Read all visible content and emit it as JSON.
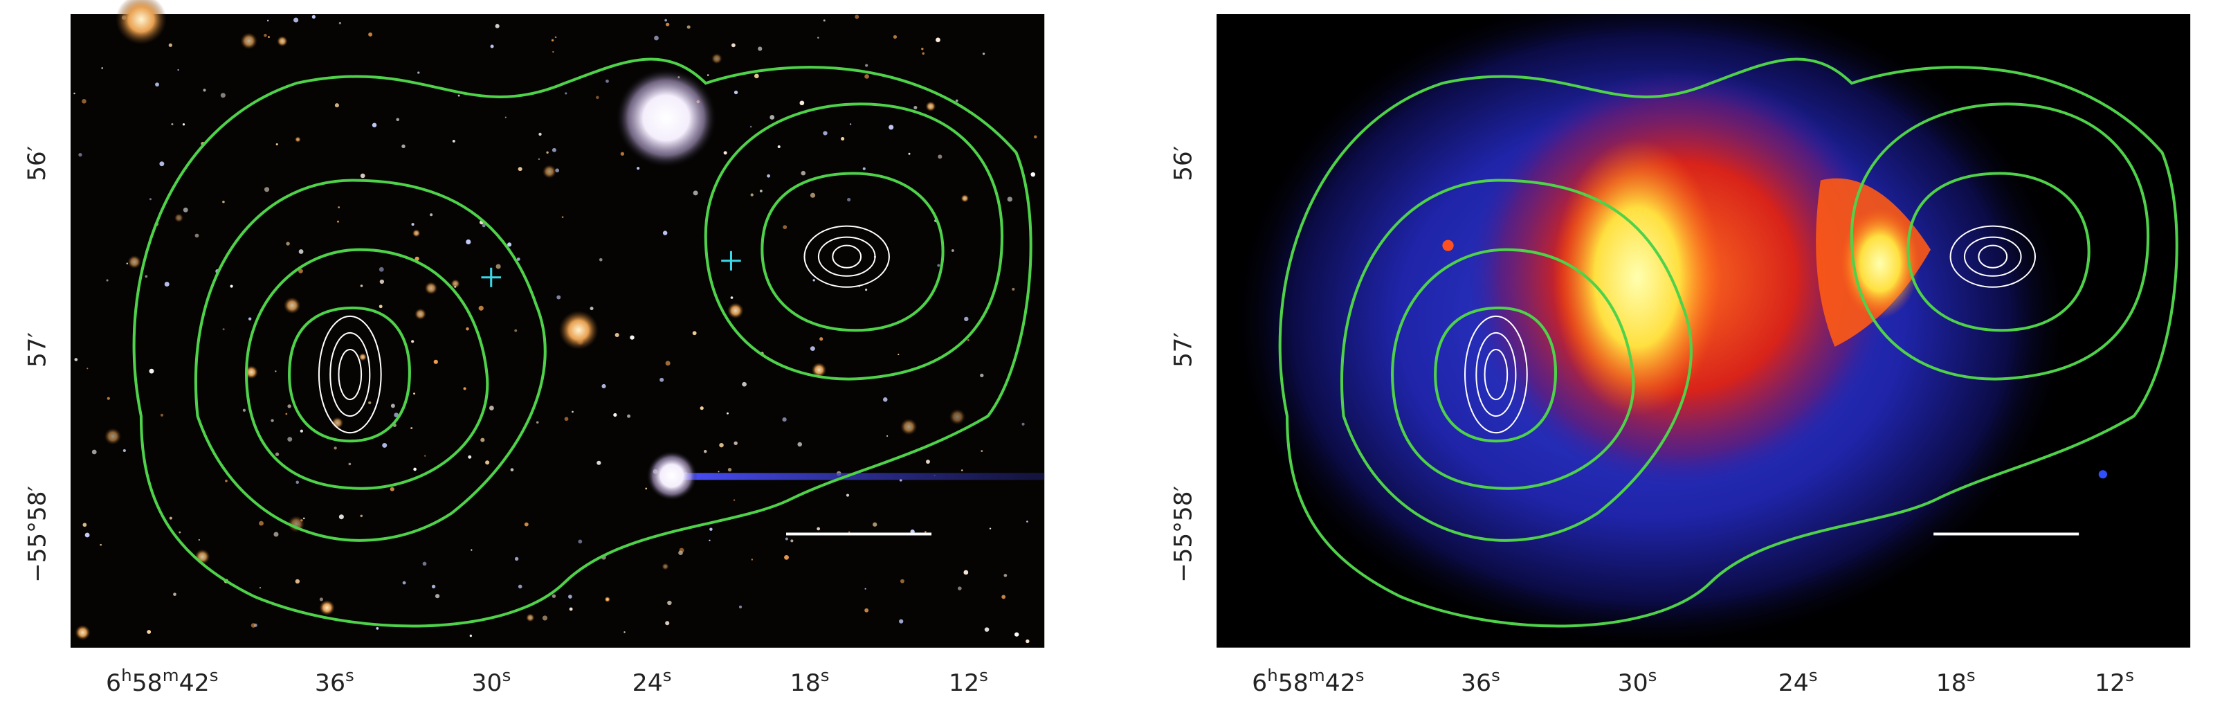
{
  "panels": [
    {
      "x_tick_labels": [
        "6h58m42s",
        "36s",
        "30s",
        "24s",
        "18s",
        "12s"
      ],
      "y_tick_labels": [
        "56′",
        "57′",
        "−55°58′"
      ]
    },
    {
      "x_tick_labels": [
        "6h58m42s",
        "36s",
        "30s",
        "24s",
        "18s",
        "12s"
      ],
      "y_tick_labels": [
        "56′",
        "57′",
        "−55°58′"
      ]
    }
  ]
}
